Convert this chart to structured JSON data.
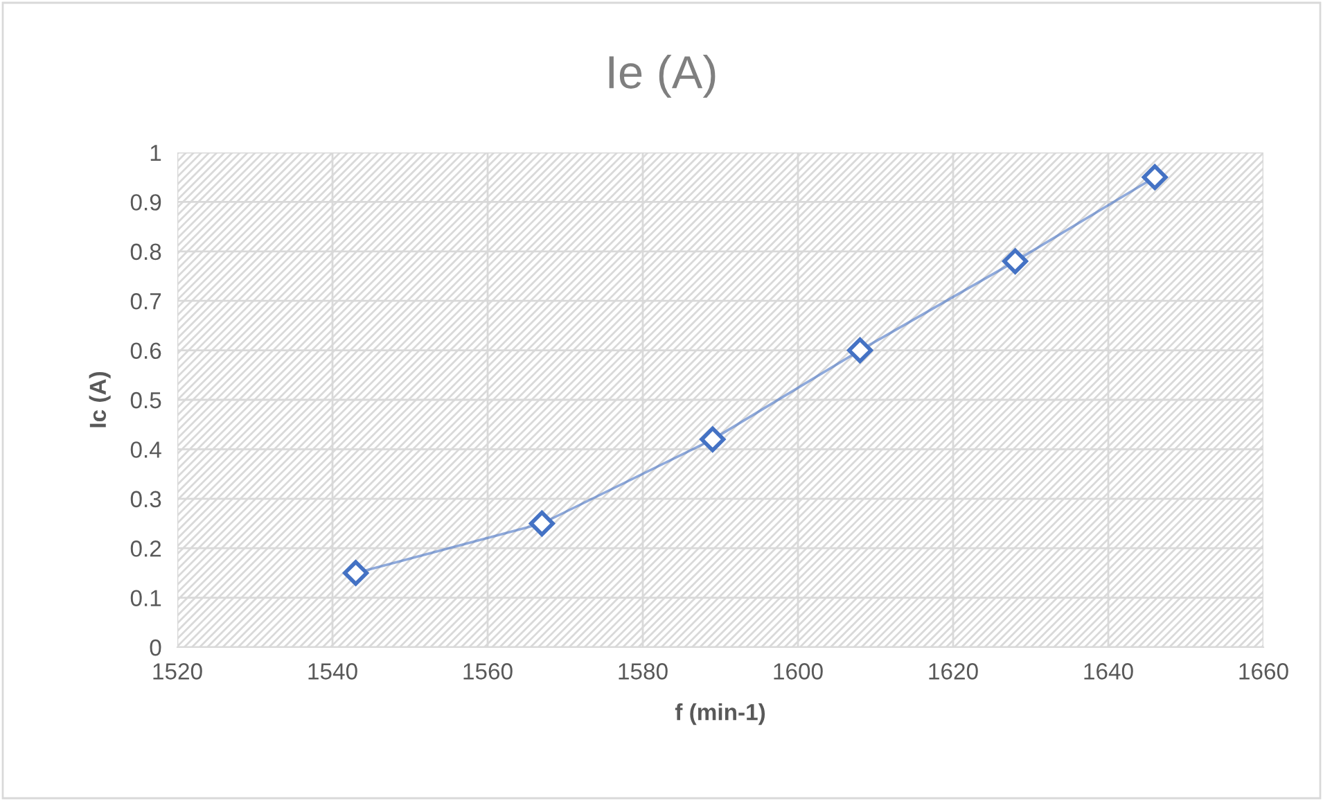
{
  "chart_data": {
    "type": "line",
    "title": "Ie (A)",
    "xlabel": "f (min-1)",
    "ylabel": "Ic (A)",
    "series": [
      {
        "color": "#4472c4",
        "x": [
          1543,
          1567,
          1589,
          1608,
          1628,
          1646
        ],
        "values": [
          0.15,
          0.25,
          0.42,
          0.6,
          0.78,
          0.95
        ]
      }
    ],
    "xlim": [
      1520,
      1660
    ],
    "xticks": [
      1520,
      1540,
      1560,
      1580,
      1600,
      1620,
      1640,
      1660
    ],
    "ylim": [
      0,
      1
    ],
    "yticks": [
      0,
      0.1,
      0.2,
      0.3,
      0.4,
      0.5,
      0.6,
      0.7,
      0.8,
      0.9,
      1
    ],
    "grid": true,
    "marker": "diamond",
    "line_style": "solid"
  }
}
